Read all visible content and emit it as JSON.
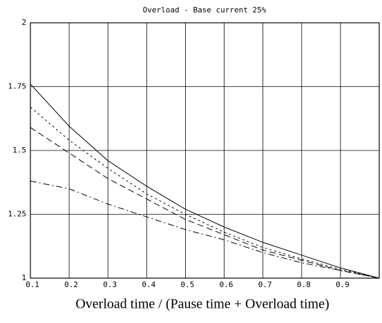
{
  "chart_data": {
    "type": "line",
    "title": "Overload - Base current 25%",
    "x_label": "Overload time / (Pause time + Overload time)",
    "x": [
      0.1,
      0.2,
      0.3,
      0.4,
      0.5,
      0.6,
      0.7,
      0.8,
      0.9,
      1.0
    ],
    "series": [
      {
        "color": "#000000",
        "dash": "solid",
        "values": [
          1.76,
          1.595,
          1.46,
          1.36,
          1.27,
          1.2,
          1.14,
          1.09,
          1.04,
          1.0
        ]
      },
      {
        "color": "#000000",
        "dash": "short-dash",
        "values": [
          1.67,
          1.54,
          1.43,
          1.33,
          1.25,
          1.18,
          1.12,
          1.075,
          1.035,
          1.0
        ]
      },
      {
        "color": "#000000",
        "dash": "long-dash",
        "values": [
          1.59,
          1.49,
          1.39,
          1.31,
          1.23,
          1.17,
          1.11,
          1.07,
          1.03,
          1.0
        ]
      },
      {
        "color": "#000000",
        "dash": "dash-dot",
        "values": [
          1.38,
          1.35,
          1.29,
          1.24,
          1.19,
          1.15,
          1.1,
          1.06,
          1.03,
          1.0
        ]
      }
    ],
    "xlim": [
      0.1,
      1.0
    ],
    "xticks": [
      0.1,
      0.2,
      0.3,
      0.4,
      0.5,
      0.6,
      0.7,
      0.8,
      0.9
    ],
    "ylim": [
      1,
      2
    ],
    "yticks": [
      1,
      1.25,
      1.5,
      1.75,
      2
    ],
    "grid": true
  }
}
